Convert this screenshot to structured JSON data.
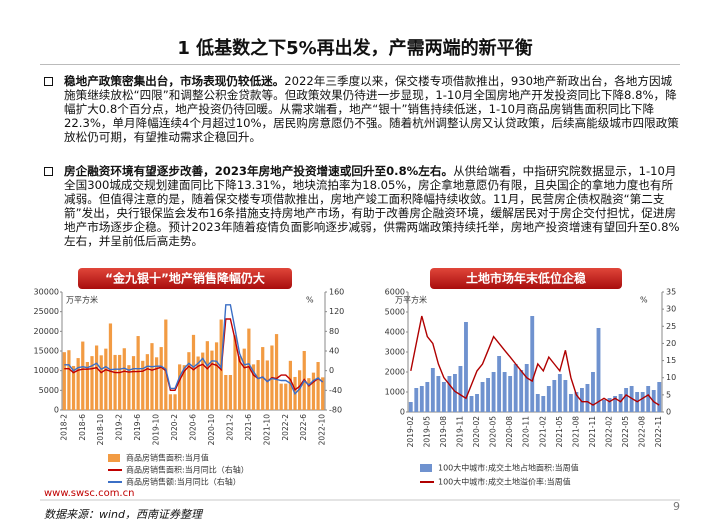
{
  "header": {
    "title": "1 低基数之下5%再出发，产需两端的新平衡"
  },
  "bullets": [
    {
      "lead": "稳地产政策密集出台，市场表现仍较低迷。",
      "text": "2022年三季度以来，保交楼专项借款推出，930地产新政出台，各地方因城施策继续放松“四限”和调整公积金贷款等。但政策效果仍待进一步显现，1-10月全国房地产开发投资同比下降8.8%，降幅扩大0.8个百分点，地产投资仍待回暖。从需求端看，地产“银十”销售持续低迷，1-10月商品房销售面积同比下降22.3%，单月降幅连续4个月超过10%，居民购房意愿仍不强。随着杭州调整认房又认贷政策，后续高能级城市四限政策放松仍可期，有望推动需求企稳回升。"
    },
    {
      "lead": "房企融资环境有望逐步改善，2023年房地产投资增速或回升至0.8%左右。",
      "text": "从供给端看，中指研究院数据显示，1-10月全国300城成交规划建面同比下降13.31%，地块流拍率为18.05%，房企拿地意愿仍有限，且央国企的拿地力度也有所减弱。但值得注意的是，随着保交楼专项借款推出，房地产竣工面积降幅持续收敛。11月，民营房企债权融资“第二支箭”发出，央行银保监会发布16条措施支持房地产市场，有助于改善房企融资环境，缓解居民对于房企交付担忧，促进房地产市场逐步企稳。预计2023年随着疫情负面影响逐步减弱，供需两端政策持续托举，房地产投资增速有望回升至0.8%左右，并呈前低后高走势。"
    }
  ],
  "chart_data": [
    {
      "type": "combo",
      "title": "“金九银十”地产销售降幅仍大",
      "y_label": "万平方米",
      "y2_label": "%",
      "categories": [
        "2018-2",
        null,
        null,
        null,
        "2018-6",
        null,
        null,
        null,
        "2018-10",
        null,
        null,
        null,
        "2019-2",
        null,
        null,
        null,
        "2019-6",
        null,
        null,
        null,
        "2019-10",
        null,
        null,
        null,
        "2020-2",
        null,
        null,
        null,
        "2020-6",
        null,
        null,
        null,
        "2020-10",
        null,
        null,
        null,
        "2021-2",
        null,
        null,
        null,
        "2021-6",
        null,
        null,
        null,
        "2021-10",
        null,
        null,
        null,
        "2022-2",
        null,
        null,
        null,
        "2022-6",
        null,
        null,
        null,
        "2022-10"
      ],
      "ylim": [
        0,
        30000
      ],
      "yticks": [
        0,
        5000,
        10000,
        15000,
        20000,
        25000,
        30000
      ],
      "y2lim": [
        -80,
        160
      ],
      "y2ticks": [
        -80,
        -40,
        0,
        40,
        80,
        120,
        160
      ],
      "series": [
        {
          "name": "商品房销售面积:当月值",
          "kind": "bar",
          "color": "#f29b43",
          "values": [
            14700,
            15200,
            11200,
            13200,
            17400,
            12200,
            13700,
            16400,
            13900,
            15600,
            22000,
            14000,
            14000,
            15700,
            11400,
            13700,
            18800,
            12500,
            14200,
            17000,
            13400,
            16000,
            23000,
            4000,
            4000,
            11600,
            11400,
            14700,
            19100,
            13600,
            14600,
            17500,
            15100,
            17200,
            23000,
            8900,
            8900,
            19000,
            13700,
            15600,
            20700,
            11600,
            12700,
            16000,
            12600,
            16400,
            19300,
            6700,
            6700,
            12500,
            8400,
            10100,
            15000,
            8100,
            9500,
            12200,
            8300
          ]
        },
        {
          "name": "商品房销售面积:当月同比（右轴）",
          "kind": "line",
          "axis": "y2",
          "color": "#c00000",
          "values": [
            4,
            4,
            -4,
            1,
            3,
            3,
            4,
            6,
            -4,
            2,
            -1,
            -4,
            -4,
            -1,
            -3,
            -2,
            -2,
            -1,
            4,
            1,
            4,
            7,
            0,
            -40,
            -40,
            -19,
            -1,
            9,
            2,
            9,
            13,
            4,
            14,
            11,
            2,
            105,
            105,
            64,
            19,
            6,
            8,
            -9,
            -16,
            -13,
            -22,
            -14,
            -16,
            -9,
            -9,
            -18,
            -39,
            -32,
            -18,
            -31,
            -23,
            -16,
            -23
          ]
        },
        {
          "name": "商品房销售额:当月同比（右轴）",
          "kind": "line",
          "axis": "y2",
          "color": "#3b6fc6",
          "values": [
            12,
            12,
            0,
            6,
            8,
            6,
            10,
            15,
            3,
            8,
            2,
            3,
            3,
            5,
            1,
            4,
            4,
            4,
            9,
            8,
            9,
            9,
            3,
            -36,
            -36,
            -12,
            5,
            15,
            7,
            15,
            25,
            10,
            20,
            19,
            6,
            134,
            134,
            85,
            35,
            12,
            14,
            -2,
            -16,
            -13,
            -22,
            -16,
            -18,
            -20,
            -20,
            -26,
            -47,
            -37,
            -21,
            -29,
            -20,
            -15,
            -23
          ]
        }
      ]
    },
    {
      "type": "combo",
      "title": "土地市场年末低位企稳",
      "y_label": "万平方米",
      "y2_label": "%",
      "categories": [
        "2019-02",
        null,
        null,
        "2019-05",
        null,
        null,
        "2019-08",
        null,
        null,
        "2019-11",
        null,
        null,
        "2020-02",
        null,
        null,
        "2020-05",
        null,
        null,
        "2020-08",
        null,
        null,
        "2020-11",
        null,
        null,
        "2021-02",
        null,
        null,
        "2021-05",
        null,
        null,
        "2021-08",
        null,
        null,
        "2021-11",
        null,
        null,
        "2022-02",
        null,
        null,
        "2022-05",
        null,
        null,
        "2022-08",
        null,
        null,
        "2022-11"
      ],
      "ylim": [
        0,
        6000
      ],
      "yticks": [
        0,
        1000,
        2000,
        3000,
        4000,
        5000,
        6000
      ],
      "y2lim": [
        0,
        35
      ],
      "y2ticks": [
        0,
        5,
        10,
        15,
        20,
        25,
        30,
        35
      ],
      "series": [
        {
          "name": "100大中城市:成交土地占地面积:当周值",
          "kind": "bar",
          "color": "#6f92cf",
          "values": [
            500,
            1200,
            1300,
            1500,
            2200,
            1800,
            1500,
            1800,
            1900,
            2300,
            4500,
            800,
            900,
            1500,
            1700,
            2000,
            2800,
            2000,
            1800,
            2400,
            2100,
            2400,
            4800,
            900,
            800,
            1300,
            1600,
            1900,
            1600,
            900,
            1000,
            1200,
            1400,
            2000,
            4200,
            600,
            700,
            800,
            900,
            1200,
            1300,
            1000,
            1000,
            1300,
            1100,
            1500
          ]
        },
        {
          "name": "100大中城市:成交土地溢价率:当周值",
          "kind": "line",
          "axis": "y2",
          "color": "#b00000",
          "values": [
            12,
            20,
            28,
            22,
            20,
            14,
            10,
            8,
            6,
            5,
            4,
            8,
            12,
            14,
            18,
            22,
            20,
            18,
            16,
            14,
            12,
            10,
            9,
            14,
            12,
            16,
            14,
            12,
            18,
            10,
            5,
            3,
            3,
            2,
            3,
            4,
            3,
            4,
            3,
            5,
            4,
            3,
            4,
            5,
            3,
            2
          ]
        }
      ]
    }
  ],
  "footer": {
    "url": "www.swsc.com.cn",
    "source": "数据来源：wind，西南证券整理",
    "page": "9"
  }
}
